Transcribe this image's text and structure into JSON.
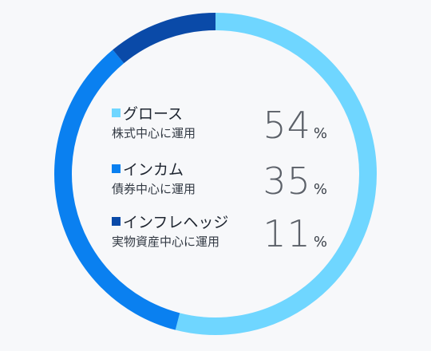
{
  "chart_data": {
    "type": "pie",
    "style": "donut",
    "categories": [
      "グロース",
      "インカム",
      "インフレヘッジ"
    ],
    "descriptions": [
      "株式中心に運用",
      "債券中心に運用",
      "実物資産中心に運用"
    ],
    "values": [
      54,
      35,
      11
    ],
    "unit": "%",
    "colors": [
      "#6fd6ff",
      "#0a80f0",
      "#0a4aa8"
    ],
    "start": "12 o'clock",
    "direction": "clockwise"
  }
}
